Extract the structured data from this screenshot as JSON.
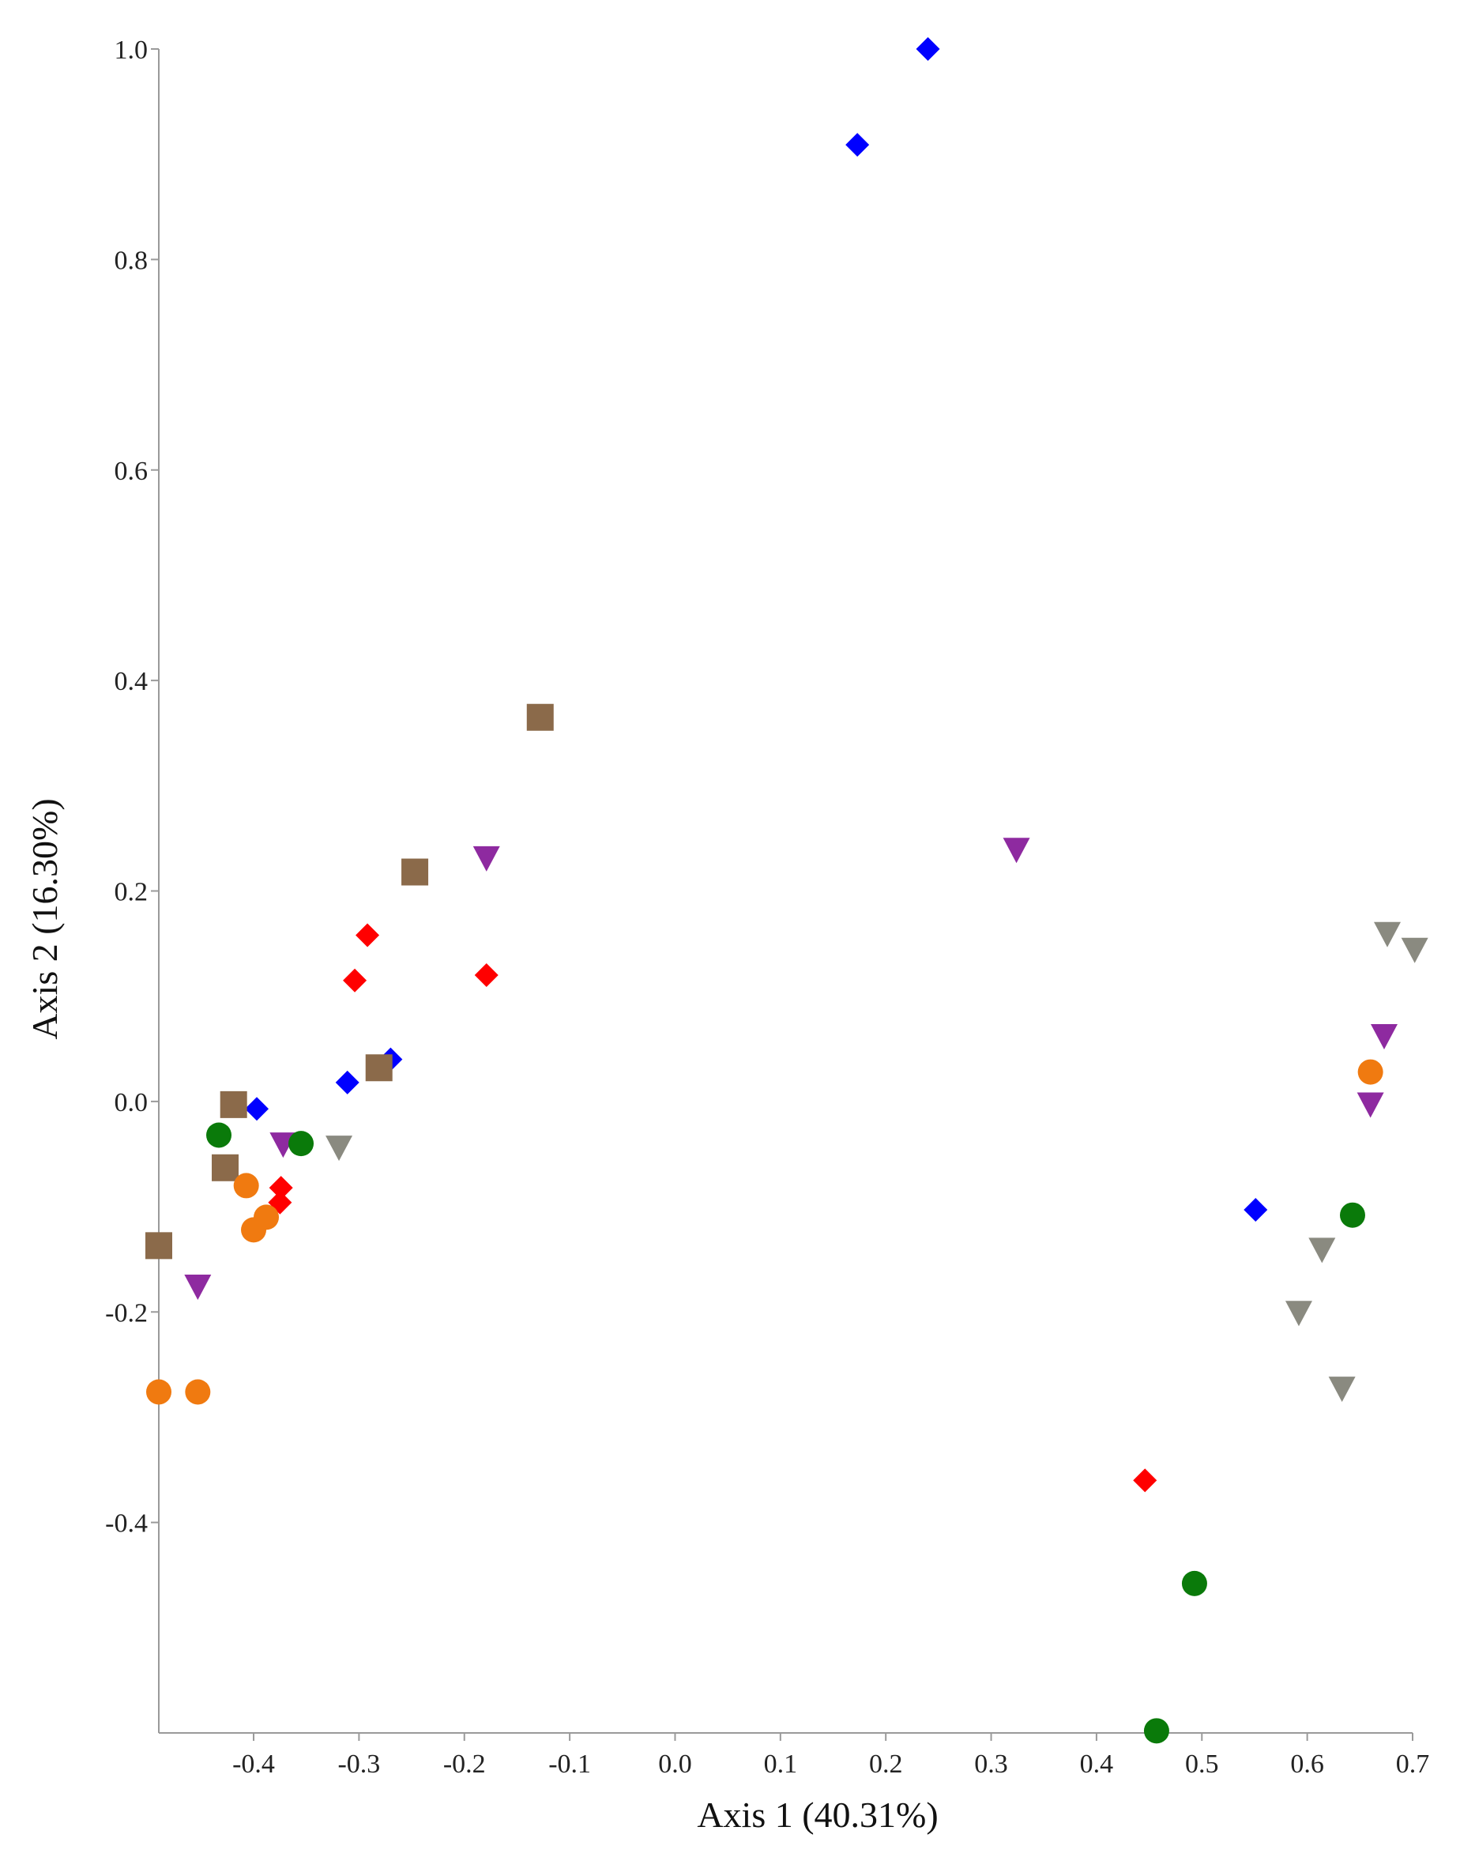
{
  "chart_data": {
    "type": "scatter",
    "title": "",
    "xlabel": "Axis 1 (40.31%)",
    "ylabel": "Axis 2 (16.30%)",
    "xlim": [
      -0.49,
      0.7
    ],
    "ylim": [
      -0.6,
      1.0
    ],
    "x_ticks": [
      "-0.4",
      "-0.3",
      "-0.2",
      "-0.1",
      "0.0",
      "0.1",
      "0.2",
      "0.3",
      "0.4",
      "0.5",
      "0.6",
      "0.7"
    ],
    "y_ticks": [
      "1.0",
      "0.8",
      "0.6",
      "0.4",
      "0.2",
      "0.0",
      "-0.2",
      "-0.4"
    ],
    "grid": false,
    "legend": "none",
    "series": [
      {
        "marker": "diamond",
        "color": "#0000ff",
        "points": [
          [
            0.24,
            1.0
          ],
          [
            0.173,
            0.909
          ],
          [
            -0.397,
            -0.007
          ],
          [
            -0.311,
            0.018
          ],
          [
            -0.27,
            0.04
          ],
          [
            0.551,
            -0.103
          ]
        ]
      },
      {
        "marker": "diamond",
        "color": "#ff0000",
        "points": [
          [
            -0.292,
            0.158
          ],
          [
            -0.304,
            0.115
          ],
          [
            -0.179,
            0.12
          ],
          [
            -0.374,
            -0.082
          ],
          [
            -0.375,
            -0.096
          ],
          [
            0.446,
            -0.36
          ]
        ]
      },
      {
        "marker": "square",
        "color": "#8b6a4a",
        "points": [
          [
            -0.128,
            0.365
          ],
          [
            -0.247,
            0.218
          ],
          [
            -0.281,
            0.032
          ],
          [
            -0.419,
            -0.003
          ],
          [
            -0.427,
            -0.063
          ],
          [
            -0.49,
            -0.137
          ]
        ]
      },
      {
        "marker": "triangle-down",
        "color": "#8e2aa0",
        "points": [
          [
            -0.179,
            0.232
          ],
          [
            0.324,
            0.24
          ],
          [
            -0.372,
            -0.04
          ],
          [
            -0.453,
            -0.175
          ],
          [
            0.673,
            0.063
          ],
          [
            0.66,
            -0.002
          ]
        ]
      },
      {
        "marker": "triangle-down",
        "color": "#8a8a80",
        "points": [
          [
            -0.319,
            -0.043
          ],
          [
            0.676,
            0.16
          ],
          [
            0.702,
            0.145
          ],
          [
            0.614,
            -0.14
          ],
          [
            0.592,
            -0.2
          ],
          [
            0.633,
            -0.272
          ]
        ]
      },
      {
        "marker": "circle",
        "color": "#f07a10",
        "points": [
          [
            -0.407,
            -0.08
          ],
          [
            -0.388,
            -0.11
          ],
          [
            -0.4,
            -0.122
          ],
          [
            -0.49,
            -0.276
          ],
          [
            -0.453,
            -0.276
          ],
          [
            0.66,
            0.028
          ]
        ]
      },
      {
        "marker": "circle",
        "color": "#0a7a0a",
        "points": [
          [
            -0.433,
            -0.032
          ],
          [
            -0.355,
            -0.04
          ],
          [
            0.643,
            -0.108
          ],
          [
            0.493,
            -0.458
          ],
          [
            0.457,
            -0.598
          ]
        ]
      }
    ]
  }
}
